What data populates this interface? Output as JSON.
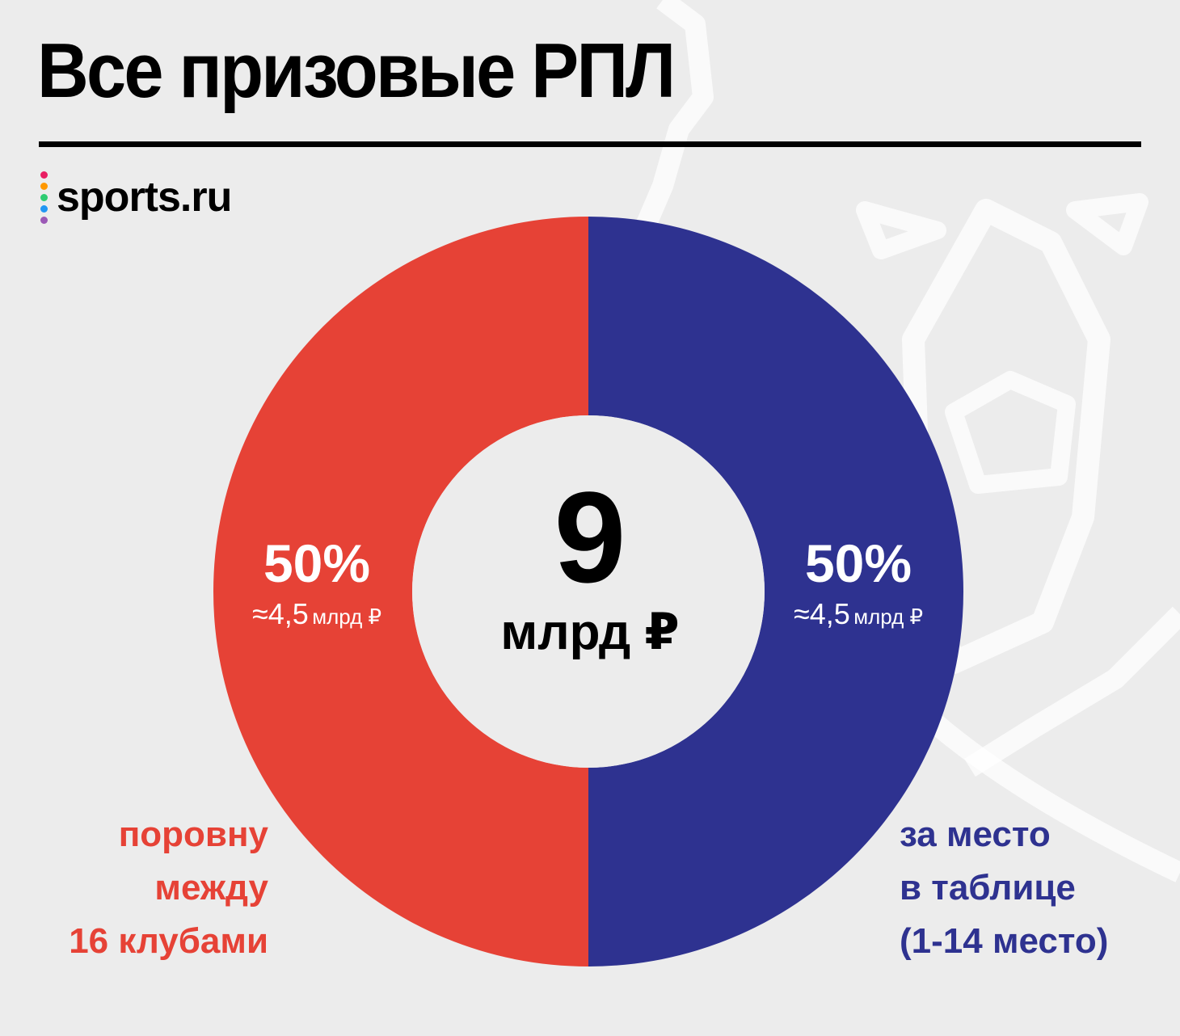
{
  "title": "Все призовые РПЛ",
  "logo": {
    "text": "sports.ru",
    "dot_colors": [
      "#e91e63",
      "#ff9800",
      "#2ecc71",
      "#2196f3",
      "#9b59b6"
    ]
  },
  "center": {
    "value": "9",
    "unit": "млрд ₽"
  },
  "colors": {
    "left": "#e64236",
    "right": "#2e3290",
    "background": "#ececec"
  },
  "chart_data": {
    "type": "pie",
    "title": "Все призовые РПЛ",
    "total": 9,
    "total_unit": "млрд ₽",
    "slices": [
      {
        "percent_label": "50%",
        "value": 4.5,
        "approx_symbol": "≈",
        "approx_value": "4,5",
        "approx_unit": "млрд ₽",
        "label_lines": [
          "поровну",
          "между",
          "16 клубами"
        ],
        "color": "#e64236"
      },
      {
        "percent_label": "50%",
        "value": 4.5,
        "approx_symbol": "≈",
        "approx_value": "4,5",
        "approx_unit": "млрд ₽",
        "label_lines": [
          "за место",
          "в таблице",
          "(1-14 место)"
        ],
        "color": "#2e3290"
      }
    ]
  }
}
